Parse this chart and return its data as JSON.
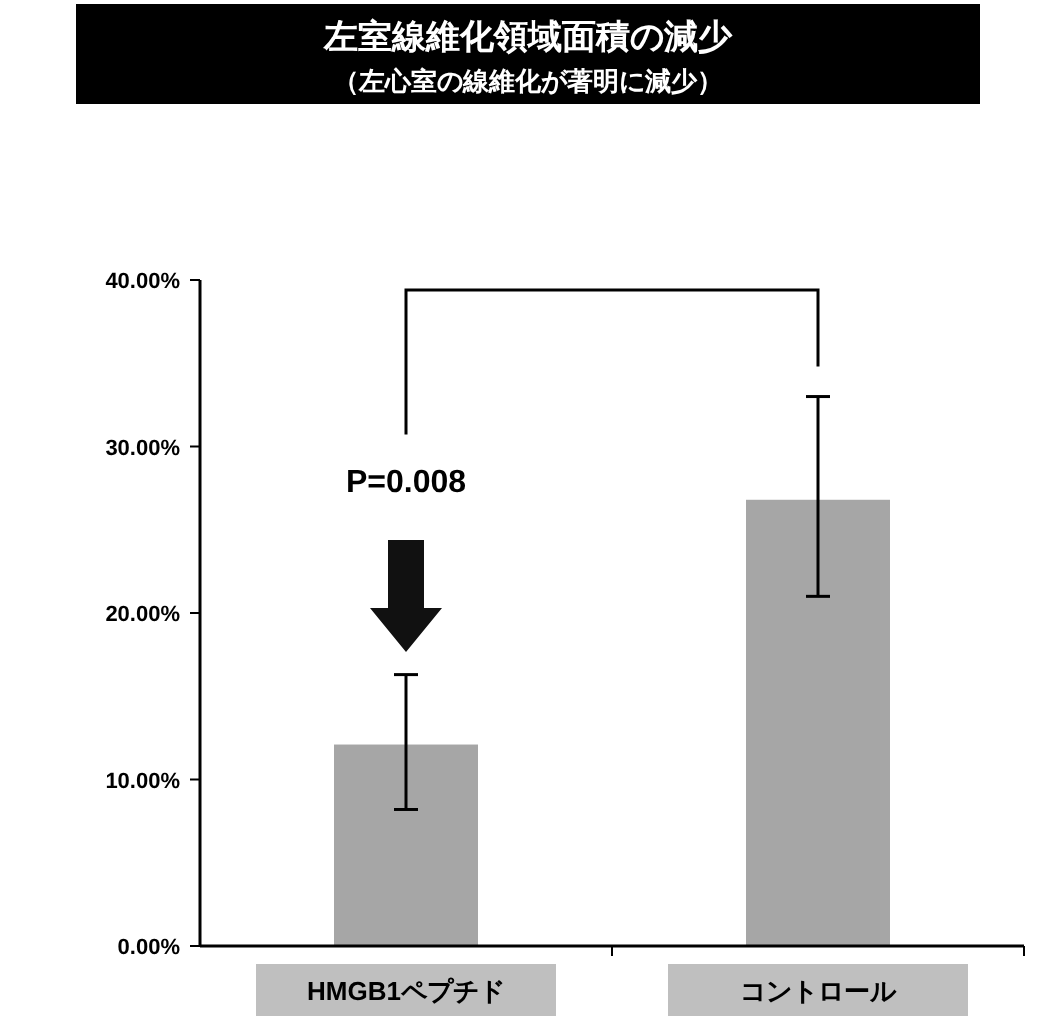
{
  "chart_data": {
    "type": "bar",
    "title": "左室線維化領域面積の減少",
    "subtitle": "（左心室の線維化が著明に減少）",
    "categories": [
      "HMGB1ペプチド",
      "コントロール"
    ],
    "values": [
      12.1,
      26.8
    ],
    "color": "#a6a6a6",
    "errors": [
      [
        8.2,
        16.3
      ],
      [
        21.0,
        33.0
      ]
    ],
    "ylim": [
      0,
      40
    ],
    "yticks": [
      {
        "value": 0,
        "label": "0.00%"
      },
      {
        "value": 10,
        "label": "10.00%"
      },
      {
        "value": 20,
        "label": "20.00%"
      },
      {
        "value": 30,
        "label": "30.00%"
      },
      {
        "value": 40,
        "label": "40.00%"
      }
    ],
    "grid": false,
    "annotations": [
      "P=0.008"
    ]
  }
}
